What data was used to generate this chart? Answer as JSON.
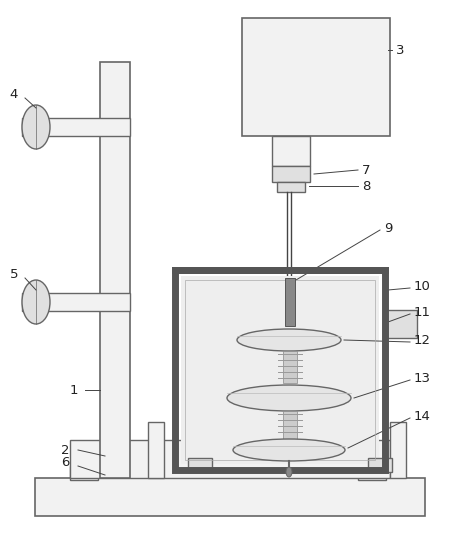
{
  "fig_width": 4.63,
  "fig_height": 5.44,
  "dpi": 100,
  "bg_color": "#ffffff",
  "lc": "#666666",
  "lc_dark": "#444444",
  "fc_light": "#f2f2f2",
  "fc_mid": "#e0e0e0",
  "fc_tank": "#e8e8e8",
  "fc_dark": "#999999"
}
